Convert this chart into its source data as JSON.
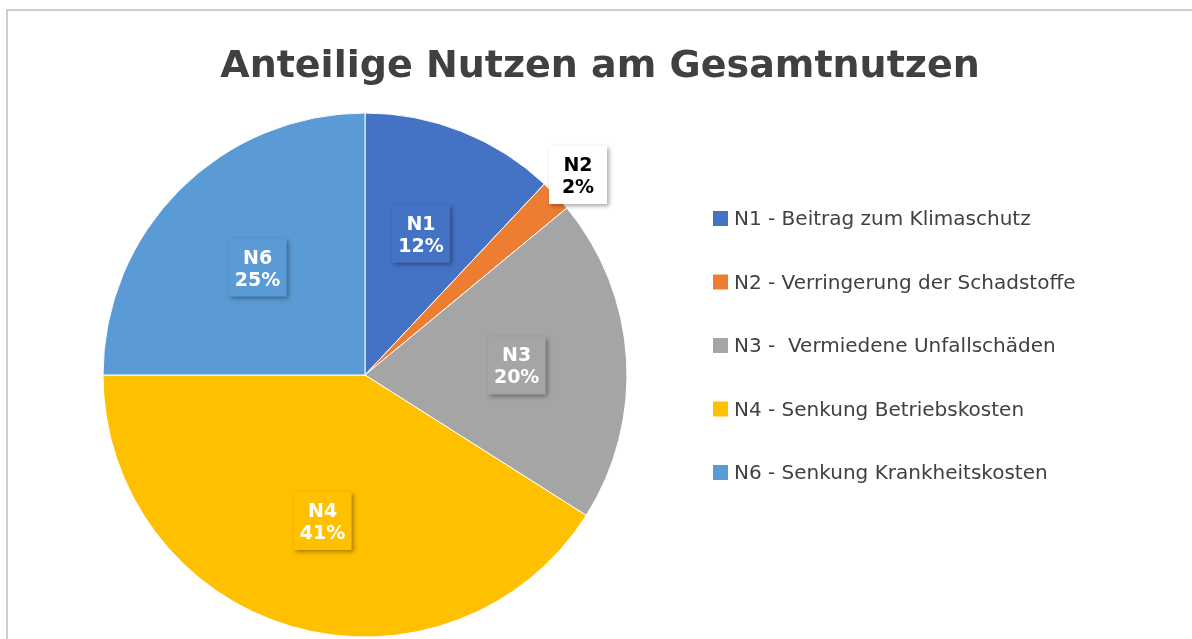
{
  "chart_data": {
    "type": "pie",
    "title": "Anteilige Nutzen am Gesamtnutzen",
    "categories": [
      "N1 - Beitrag zum Klimaschutz",
      "N2 - Verringerung der Schadstoffe",
      "N3 -  Vermiedene Unfallschäden",
      "N4 - Senkung Betriebskosten",
      "N6 - Senkung Krankheitskosten"
    ],
    "values": [
      12,
      2,
      20,
      41,
      25
    ],
    "colors": [
      "#4472c4",
      "#ed7d31",
      "#a5a5a5",
      "#ffc000",
      "#5b9bd5"
    ],
    "value_labels": [
      "N1\n12%",
      "N2\n2%",
      "N3\n20%",
      "N4\n41%",
      "N6\n25%"
    ],
    "legend": "right"
  }
}
